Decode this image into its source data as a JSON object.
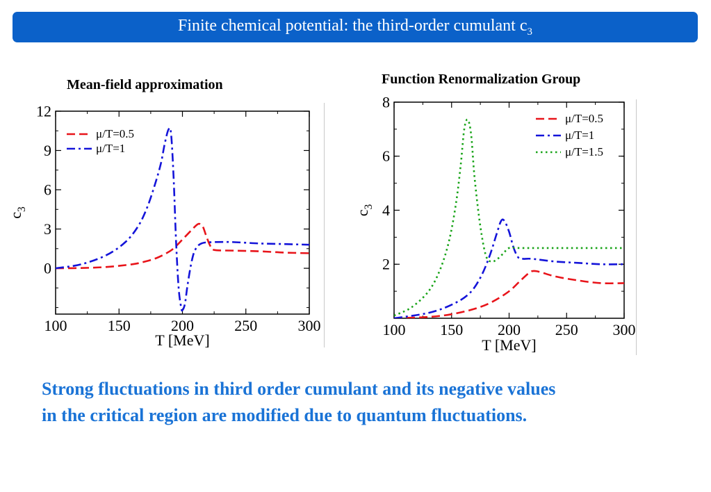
{
  "header": {
    "title_main": "Finite chemical potential: the third-order cumulant c",
    "title_sub": "3"
  },
  "caption": {
    "line1": "Strong fluctuations in third order cumulant and its negative values",
    "line2": "in the critical region are modified due to quantum fluctuations."
  },
  "chart_data": [
    {
      "type": "line",
      "title": "Mean-field approximation",
      "xlabel": "T [MeV]",
      "ylabel": "c",
      "ylabel_sub": "3",
      "xlim": [
        100,
        300
      ],
      "ylim": [
        -3.5,
        12
      ],
      "xticks": [
        100,
        150,
        200,
        250,
        300
      ],
      "yticks": [
        0,
        3,
        6,
        9,
        12
      ],
      "grid": false,
      "legend_position": "top-left",
      "series": [
        {
          "name": "μ/T=0.5",
          "color": "#e8141a",
          "dash": "dash",
          "x": [
            100,
            120,
            140,
            160,
            170,
            180,
            190,
            195,
            200,
            205,
            210,
            213,
            216,
            219,
            222,
            225,
            240,
            260,
            280,
            300
          ],
          "y": [
            0,
            0.02,
            0.1,
            0.3,
            0.5,
            0.8,
            1.3,
            1.7,
            2.2,
            2.7,
            3.2,
            3.4,
            3.2,
            2.4,
            1.7,
            1.4,
            1.35,
            1.3,
            1.2,
            1.15
          ]
        },
        {
          "name": "μ/T=1",
          "color": "#1414d9",
          "dash": "dashdot",
          "x": [
            100,
            120,
            140,
            155,
            165,
            172,
            178,
            183,
            186,
            189,
            191,
            193,
            195,
            197,
            199,
            200,
            202,
            204,
            207,
            210,
            215,
            225,
            240,
            260,
            280,
            300
          ],
          "y": [
            0,
            0.3,
            1.0,
            2.0,
            3.2,
            4.6,
            6.3,
            8.0,
            9.5,
            10.6,
            10.3,
            7.0,
            2.0,
            -1.5,
            -3.0,
            -3.2,
            -2.7,
            -1.3,
            0.4,
            1.4,
            1.9,
            2.0,
            2.0,
            1.9,
            1.85,
            1.8
          ]
        }
      ]
    },
    {
      "type": "line",
      "title": "Function Renormalization Group",
      "xlabel": "T [MeV]",
      "ylabel": "c",
      "ylabel_sub": "3",
      "xlim": [
        100,
        300
      ],
      "ylim": [
        0,
        8
      ],
      "xticks": [
        100,
        150,
        200,
        250,
        300
      ],
      "yticks": [
        2,
        4,
        6,
        8
      ],
      "grid": false,
      "legend_position": "top-right",
      "series": [
        {
          "name": "μ/T=0.5",
          "color": "#e8141a",
          "dash": "dash",
          "x": [
            100,
            130,
            150,
            170,
            185,
            200,
            210,
            218,
            222,
            228,
            240,
            260,
            280,
            300
          ],
          "y": [
            0,
            0.05,
            0.15,
            0.35,
            0.6,
            1.0,
            1.4,
            1.7,
            1.75,
            1.7,
            1.55,
            1.4,
            1.3,
            1.3
          ],
          "_comment_removed": false
        },
        {
          "name": "μ/T=1",
          "color": "#1414d9",
          "dash": "dashdot",
          "x": [
            100,
            130,
            150,
            165,
            175,
            183,
            189,
            193,
            196,
            200,
            204,
            208,
            212,
            220,
            240,
            260,
            280,
            300
          ],
          "y": [
            0,
            0.2,
            0.5,
            0.9,
            1.5,
            2.3,
            3.1,
            3.6,
            3.6,
            3.2,
            2.6,
            2.25,
            2.2,
            2.2,
            2.1,
            2.05,
            2.0,
            2.0
          ]
        },
        {
          "name": "μ/T=1.5",
          "color": "#17a317",
          "dash": "dot",
          "x": [
            100,
            115,
            130,
            140,
            148,
            154,
            158,
            161,
            164,
            167,
            170,
            175,
            180,
            185,
            190,
            195,
            200,
            210,
            230,
            260,
            300
          ],
          "y": [
            0.1,
            0.4,
            1.0,
            1.8,
            2.9,
            4.3,
            5.7,
            7.0,
            7.35,
            6.8,
            5.2,
            3.4,
            2.3,
            2.1,
            2.2,
            2.4,
            2.6,
            2.6,
            2.6,
            2.6,
            2.6
          ]
        }
      ]
    }
  ]
}
